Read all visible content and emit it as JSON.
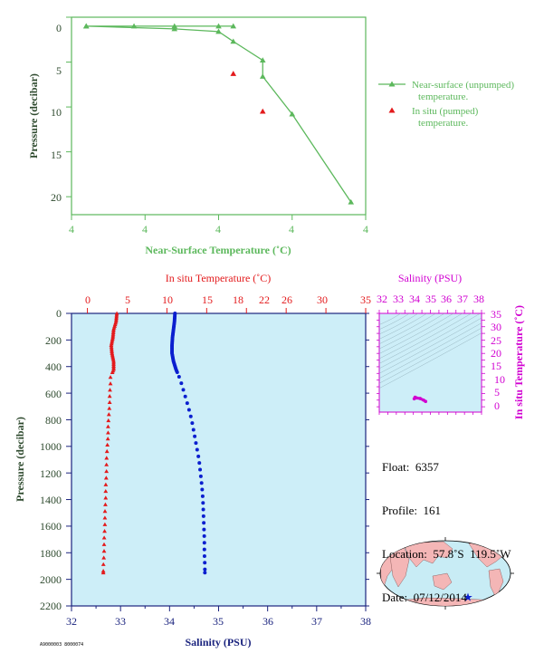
{
  "colors": {
    "green": "#5cb85c",
    "green_dark": "#2e4a2e",
    "red": "#e31a1c",
    "blue": "#0b1fcf",
    "magenta": "#d100d1",
    "navy": "#1a237e",
    "panel_blue": "#cdeef8",
    "land": "#f4b6b6",
    "ocean": "#c8ecf5"
  },
  "top_chart": {
    "xlabel": "Near-Surface Temperature (˚C)",
    "ylabel": "Pressure (decibar)",
    "x_tick_labels": [
      "4",
      "4",
      "4",
      "4",
      "4"
    ],
    "y_tick_labels": [
      "0",
      "5",
      "10",
      "15",
      "20"
    ],
    "legend": {
      "unpumped_line1": "Near-surface (unpumped)",
      "unpumped_line2": "temperature.",
      "pumped_line1": "In situ (pumped)",
      "pumped_line2": "temperature."
    }
  },
  "main_chart": {
    "top_axis_label": "In situ Temperature (˚C)",
    "bottom_axis_label": "Salinity (PSU)",
    "ylabel": "Pressure (decibar)",
    "temp_ticks": [
      "0",
      "5",
      "10",
      "15",
      "18",
      "22",
      "26",
      "30",
      "35"
    ],
    "sal_ticks": [
      "32",
      "33",
      "34",
      "35",
      "36",
      "37",
      "38"
    ],
    "pressure_ticks": [
      "0",
      "200",
      "400",
      "600",
      "800",
      "1000",
      "1200",
      "1400",
      "1600",
      "1800",
      "2000",
      "2200"
    ]
  },
  "ts_chart": {
    "top_label": "Salinity (PSU)",
    "right_label": "In situ Temperature (˚C)",
    "sal_ticks": [
      "32",
      "33",
      "34",
      "35",
      "36",
      "37",
      "38"
    ],
    "temp_ticks": [
      "35",
      "30",
      "25",
      "20",
      "15",
      "10",
      "5",
      "0"
    ]
  },
  "info": {
    "float_line": "Float:  6357",
    "profile_line": "Profile:  161",
    "location_line": "Location:  57.8˚S  119.5˚W",
    "date_line": "Date:  07/12/2014"
  },
  "footer_id": "A9000003 8000074",
  "chart_data": [
    {
      "type": "line",
      "title": "",
      "xlabel": "Near-Surface Temperature (˚C)",
      "ylabel": "Pressure (decibar)",
      "ylim": [
        22,
        0
      ],
      "xlim": [
        0,
        4
      ],
      "series": [
        {
          "name": "Near-surface (unpumped) temperature.",
          "x": [
            2.2,
            2.0,
            1.4,
            0.85,
            0.2,
            0.2,
            1.4,
            2.0,
            2.2,
            2.6,
            2.6,
            3.0,
            3.8
          ],
          "y": [
            1.0,
            1.0,
            1.0,
            1.0,
            1.0,
            1.0,
            1.3,
            1.6,
            2.7,
            4.8,
            6.6,
            10.8,
            20.6
          ]
        },
        {
          "name": "In situ (pumped) temperature.",
          "x": [
            2.2,
            2.6
          ],
          "y": [
            6.3,
            10.5
          ]
        }
      ]
    },
    {
      "type": "scatter",
      "title": "",
      "ylabel": "Pressure (decibar)",
      "ylim": [
        2200,
        0
      ],
      "series": [
        {
          "name": "In situ Temperature (˚C)",
          "xlim": [
            -2,
            35
          ],
          "points": [
            [
              3.7,
              0
            ],
            [
              3.6,
              60
            ],
            [
              3.3,
              120
            ],
            [
              3.2,
              180
            ],
            [
              3.0,
              240
            ],
            [
              3.1,
              300
            ],
            [
              3.3,
              360
            ],
            [
              3.3,
              420
            ],
            [
              2.9,
              480
            ],
            [
              2.9,
              540
            ],
            [
              2.8,
              600
            ],
            [
              2.8,
              680
            ],
            [
              2.7,
              760
            ],
            [
              2.6,
              840
            ],
            [
              2.6,
              920
            ],
            [
              2.5,
              1000
            ],
            [
              2.4,
              1100
            ],
            [
              2.4,
              1200
            ],
            [
              2.3,
              1300
            ],
            [
              2.3,
              1400
            ],
            [
              2.2,
              1500
            ],
            [
              2.2,
              1600
            ],
            [
              2.1,
              1700
            ],
            [
              2.1,
              1800
            ],
            [
              2.0,
              1900
            ],
            [
              2.0,
              1950
            ]
          ]
        },
        {
          "name": "Salinity (PSU)",
          "xlim": [
            32,
            38
          ],
          "points": [
            [
              34.11,
              0
            ],
            [
              34.1,
              60
            ],
            [
              34.08,
              120
            ],
            [
              34.06,
              180
            ],
            [
              34.05,
              240
            ],
            [
              34.05,
              300
            ],
            [
              34.08,
              360
            ],
            [
              34.13,
              420
            ],
            [
              34.22,
              500
            ],
            [
              34.3,
              600
            ],
            [
              34.38,
              700
            ],
            [
              34.45,
              800
            ],
            [
              34.5,
              900
            ],
            [
              34.55,
              1000
            ],
            [
              34.6,
              1100
            ],
            [
              34.63,
              1200
            ],
            [
              34.66,
              1300
            ],
            [
              34.68,
              1400
            ],
            [
              34.69,
              1500
            ],
            [
              34.7,
              1600
            ],
            [
              34.71,
              1700
            ],
            [
              34.71,
              1800
            ],
            [
              34.72,
              1900
            ],
            [
              34.72,
              1950
            ]
          ]
        }
      ]
    },
    {
      "type": "scatter",
      "title": "",
      "xlabel": "Salinity (PSU)",
      "ylabel": "In situ Temperature (˚C)",
      "xlim": [
        32,
        38
      ],
      "ylim": [
        -2,
        35
      ],
      "series": [
        {
          "name": "T-S",
          "points": [
            [
              34.05,
              3.0
            ],
            [
              34.1,
              3.6
            ],
            [
              34.2,
              3.3
            ],
            [
              34.4,
              3.1
            ],
            [
              34.6,
              2.5
            ],
            [
              34.72,
              2.0
            ]
          ]
        }
      ]
    }
  ]
}
